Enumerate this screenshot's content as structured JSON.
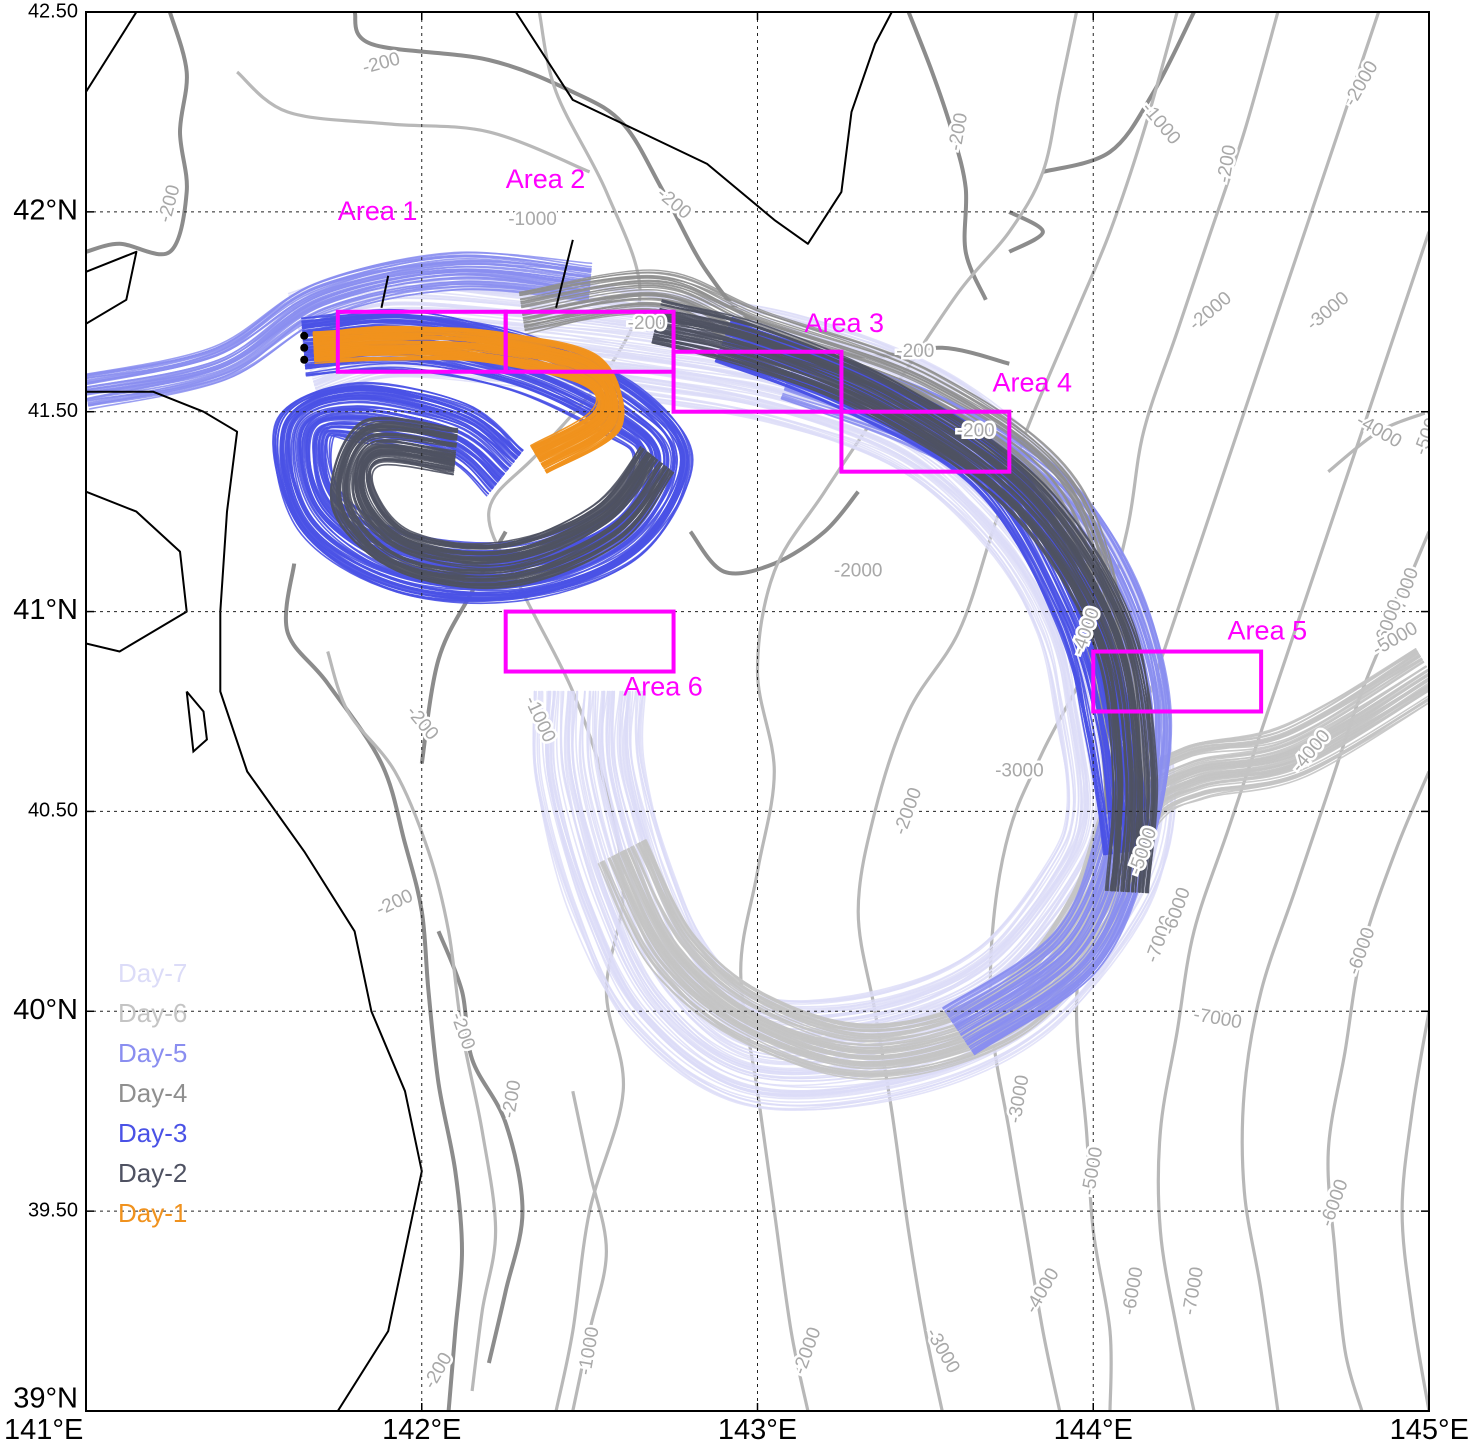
{
  "map": {
    "lon_range": [
      141,
      145
    ],
    "lat_range": [
      39,
      42.5
    ],
    "grid": "dotted",
    "x_ticks": [
      {
        "value": 141,
        "label": "141°E"
      },
      {
        "value": 142,
        "label": "142°E"
      },
      {
        "value": 143,
        "label": "143°E"
      },
      {
        "value": 144,
        "label": "144°E"
      },
      {
        "value": 145,
        "label": "145°E"
      }
    ],
    "y_ticks": [
      {
        "value": 39,
        "label": "39°N"
      },
      {
        "value": 39.5,
        "label": "39.50"
      },
      {
        "value": 40,
        "label": "40°N"
      },
      {
        "value": 40.5,
        "label": "40.50"
      },
      {
        "value": 41,
        "label": "41°N"
      },
      {
        "value": 41.5,
        "label": "41.50"
      },
      {
        "value": 42,
        "label": "42°N"
      },
      {
        "value": 42.5,
        "label": "42.50"
      }
    ]
  },
  "colors": {
    "coast": "#000000",
    "contour_dark": "#8c8c8c",
    "contour_light": "#b8b8b8",
    "area_box": "#ff00ff",
    "day_7": "#dcdcf8",
    "day_6": "#c4c4c4",
    "day_5": "#8a8ef0",
    "day_4": "#8f8f8f",
    "day_3": "#4a52e6",
    "day_2": "#4f5262",
    "day_1": "#f0921e"
  },
  "areas": [
    {
      "label": "Area 1",
      "lon": [
        141.75,
        142.25
      ],
      "lat": [
        41.6,
        41.75
      ]
    },
    {
      "label": "Area 2",
      "lon": [
        142.25,
        142.75
      ],
      "lat": [
        41.6,
        41.75
      ]
    },
    {
      "label": "Area 3",
      "lon": [
        142.75,
        143.25
      ],
      "lat": [
        41.5,
        41.65
      ]
    },
    {
      "label": "Area 4",
      "lon": [
        143.25,
        143.75
      ],
      "lat": [
        41.35,
        41.5
      ]
    },
    {
      "label": "Area 5",
      "lon": [
        144.0,
        144.5
      ],
      "lat": [
        40.75,
        40.9
      ]
    },
    {
      "label": "Area 6",
      "lon": [
        142.25,
        142.75
      ],
      "lat": [
        40.85,
        41.0
      ]
    }
  ],
  "contour_labels": [
    {
      "text": "-200",
      "lon": 141.88,
      "lat": 42.37,
      "rot": -15,
      "shade": "light"
    },
    {
      "text": "-200",
      "lon": 141.25,
      "lat": 42.02,
      "rot": -75,
      "shade": "light"
    },
    {
      "text": "-1000",
      "lon": 142.33,
      "lat": 41.98,
      "rot": 0,
      "shade": "light"
    },
    {
      "text": "-200",
      "lon": 142.75,
      "lat": 42.02,
      "rot": 40,
      "shade": "light"
    },
    {
      "text": "-200",
      "lon": 142.67,
      "lat": 41.72,
      "rot": 0,
      "shade": "light"
    },
    {
      "text": "-200",
      "lon": 143.6,
      "lat": 42.2,
      "rot": -80,
      "shade": "light"
    },
    {
      "text": "-200",
      "lon": 144.4,
      "lat": 42.12,
      "rot": -80,
      "shade": "light"
    },
    {
      "text": "-200",
      "lon": 143.47,
      "lat": 41.65,
      "rot": 0,
      "shade": "light"
    },
    {
      "text": "-1000",
      "lon": 144.2,
      "lat": 42.22,
      "rot": 50,
      "shade": "light"
    },
    {
      "text": "-2000",
      "lon": 144.8,
      "lat": 42.32,
      "rot": -60,
      "shade": "light"
    },
    {
      "text": "-2000",
      "lon": 144.35,
      "lat": 41.75,
      "rot": -40,
      "shade": "light"
    },
    {
      "text": "-3000",
      "lon": 144.7,
      "lat": 41.75,
      "rot": -40,
      "shade": "light"
    },
    {
      "text": "-4000",
      "lon": 144.85,
      "lat": 41.45,
      "rot": 30,
      "shade": "light"
    },
    {
      "text": "-5000",
      "lon": 145.0,
      "lat": 41.45,
      "rot": -70,
      "shade": "light"
    },
    {
      "text": "-200",
      "lon": 143.65,
      "lat": 41.45,
      "rot": 0,
      "shade": "light"
    },
    {
      "text": "-2000",
      "lon": 143.3,
      "lat": 41.1,
      "rot": 0,
      "shade": "light"
    },
    {
      "text": "-1000",
      "lon": 142.35,
      "lat": 40.73,
      "rot": 65,
      "shade": "light"
    },
    {
      "text": "-200",
      "lon": 142.0,
      "lat": 40.72,
      "rot": 50,
      "shade": "light"
    },
    {
      "text": "-200",
      "lon": 141.92,
      "lat": 40.27,
      "rot": -25,
      "shade": "light"
    },
    {
      "text": "-200",
      "lon": 142.12,
      "lat": 39.95,
      "rot": 70,
      "shade": "light"
    },
    {
      "text": "-200",
      "lon": 142.27,
      "lat": 39.78,
      "rot": -80,
      "shade": "light"
    },
    {
      "text": "-200",
      "lon": 142.05,
      "lat": 39.1,
      "rot": -60,
      "shade": "light"
    },
    {
      "text": "-1000",
      "lon": 142.5,
      "lat": 39.15,
      "rot": -80,
      "shade": "light"
    },
    {
      "text": "-2000",
      "lon": 143.15,
      "lat": 39.15,
      "rot": -70,
      "shade": "light"
    },
    {
      "text": "-3000",
      "lon": 143.55,
      "lat": 39.15,
      "rot": 60,
      "shade": "light"
    },
    {
      "text": "-4000",
      "lon": 143.85,
      "lat": 39.3,
      "rot": -60,
      "shade": "light"
    },
    {
      "text": "-3000",
      "lon": 143.78,
      "lat": 39.78,
      "rot": -80,
      "shade": "light"
    },
    {
      "text": "-2000",
      "lon": 143.45,
      "lat": 40.5,
      "rot": -70,
      "shade": "light"
    },
    {
      "text": "-3000",
      "lon": 143.78,
      "lat": 40.6,
      "rot": 0,
      "shade": "light"
    },
    {
      "text": "-5000",
      "lon": 144.0,
      "lat": 39.6,
      "rot": -80,
      "shade": "light"
    },
    {
      "text": "-6000",
      "lon": 144.12,
      "lat": 39.3,
      "rot": -80,
      "shade": "light"
    },
    {
      "text": "-7000",
      "lon": 144.3,
      "lat": 39.3,
      "rot": -80,
      "shade": "light"
    },
    {
      "text": "-7000",
      "lon": 144.2,
      "lat": 40.18,
      "rot": -70,
      "shade": "light"
    },
    {
      "text": "-7000",
      "lon": 144.37,
      "lat": 39.98,
      "rot": 10,
      "shade": "light"
    },
    {
      "text": "-6000",
      "lon": 144.8,
      "lat": 40.15,
      "rot": -70,
      "shade": "light"
    },
    {
      "text": "-6000",
      "lon": 144.72,
      "lat": 39.52,
      "rot": -70,
      "shade": "light"
    },
    {
      "text": "-7000",
      "lon": 144.93,
      "lat": 41.05,
      "rot": -70,
      "shade": "light"
    },
    {
      "text": "-6000",
      "lon": 144.88,
      "lat": 40.97,
      "rot": -70,
      "shade": "light"
    },
    {
      "text": "-5000",
      "lon": 144.9,
      "lat": 40.93,
      "rot": -30,
      "shade": "light"
    },
    {
      "text": "-4000",
      "lon": 144.65,
      "lat": 40.65,
      "rot": -50,
      "shade": "light"
    },
    {
      "text": "-4000",
      "lon": 143.98,
      "lat": 40.95,
      "rot": -70,
      "shade": "light"
    },
    {
      "text": "-5000",
      "lon": 144.15,
      "lat": 40.4,
      "rot": -70,
      "shade": "light"
    },
    {
      "text": "-6000",
      "lon": 144.25,
      "lat": 40.25,
      "rot": -70,
      "shade": "light"
    }
  ],
  "legend": {
    "entries": [
      {
        "label": "Day-7",
        "color": "#dcdcf8"
      },
      {
        "label": "Day-6",
        "color": "#c4c4c4"
      },
      {
        "label": "Day-5",
        "color": "#8a8ef0"
      },
      {
        "label": "Day-4",
        "color": "#8f8f8f"
      },
      {
        "label": "Day-3",
        "color": "#4a52e6"
      },
      {
        "label": "Day-2",
        "color": "#4f5262"
      },
      {
        "label": "Day-1",
        "color": "#f0921e"
      }
    ]
  },
  "release_points": [
    {
      "lon": 141.65,
      "lat": 41.69
    },
    {
      "lon": 141.65,
      "lat": 41.66
    },
    {
      "lon": 141.65,
      "lat": 41.63
    }
  ]
}
